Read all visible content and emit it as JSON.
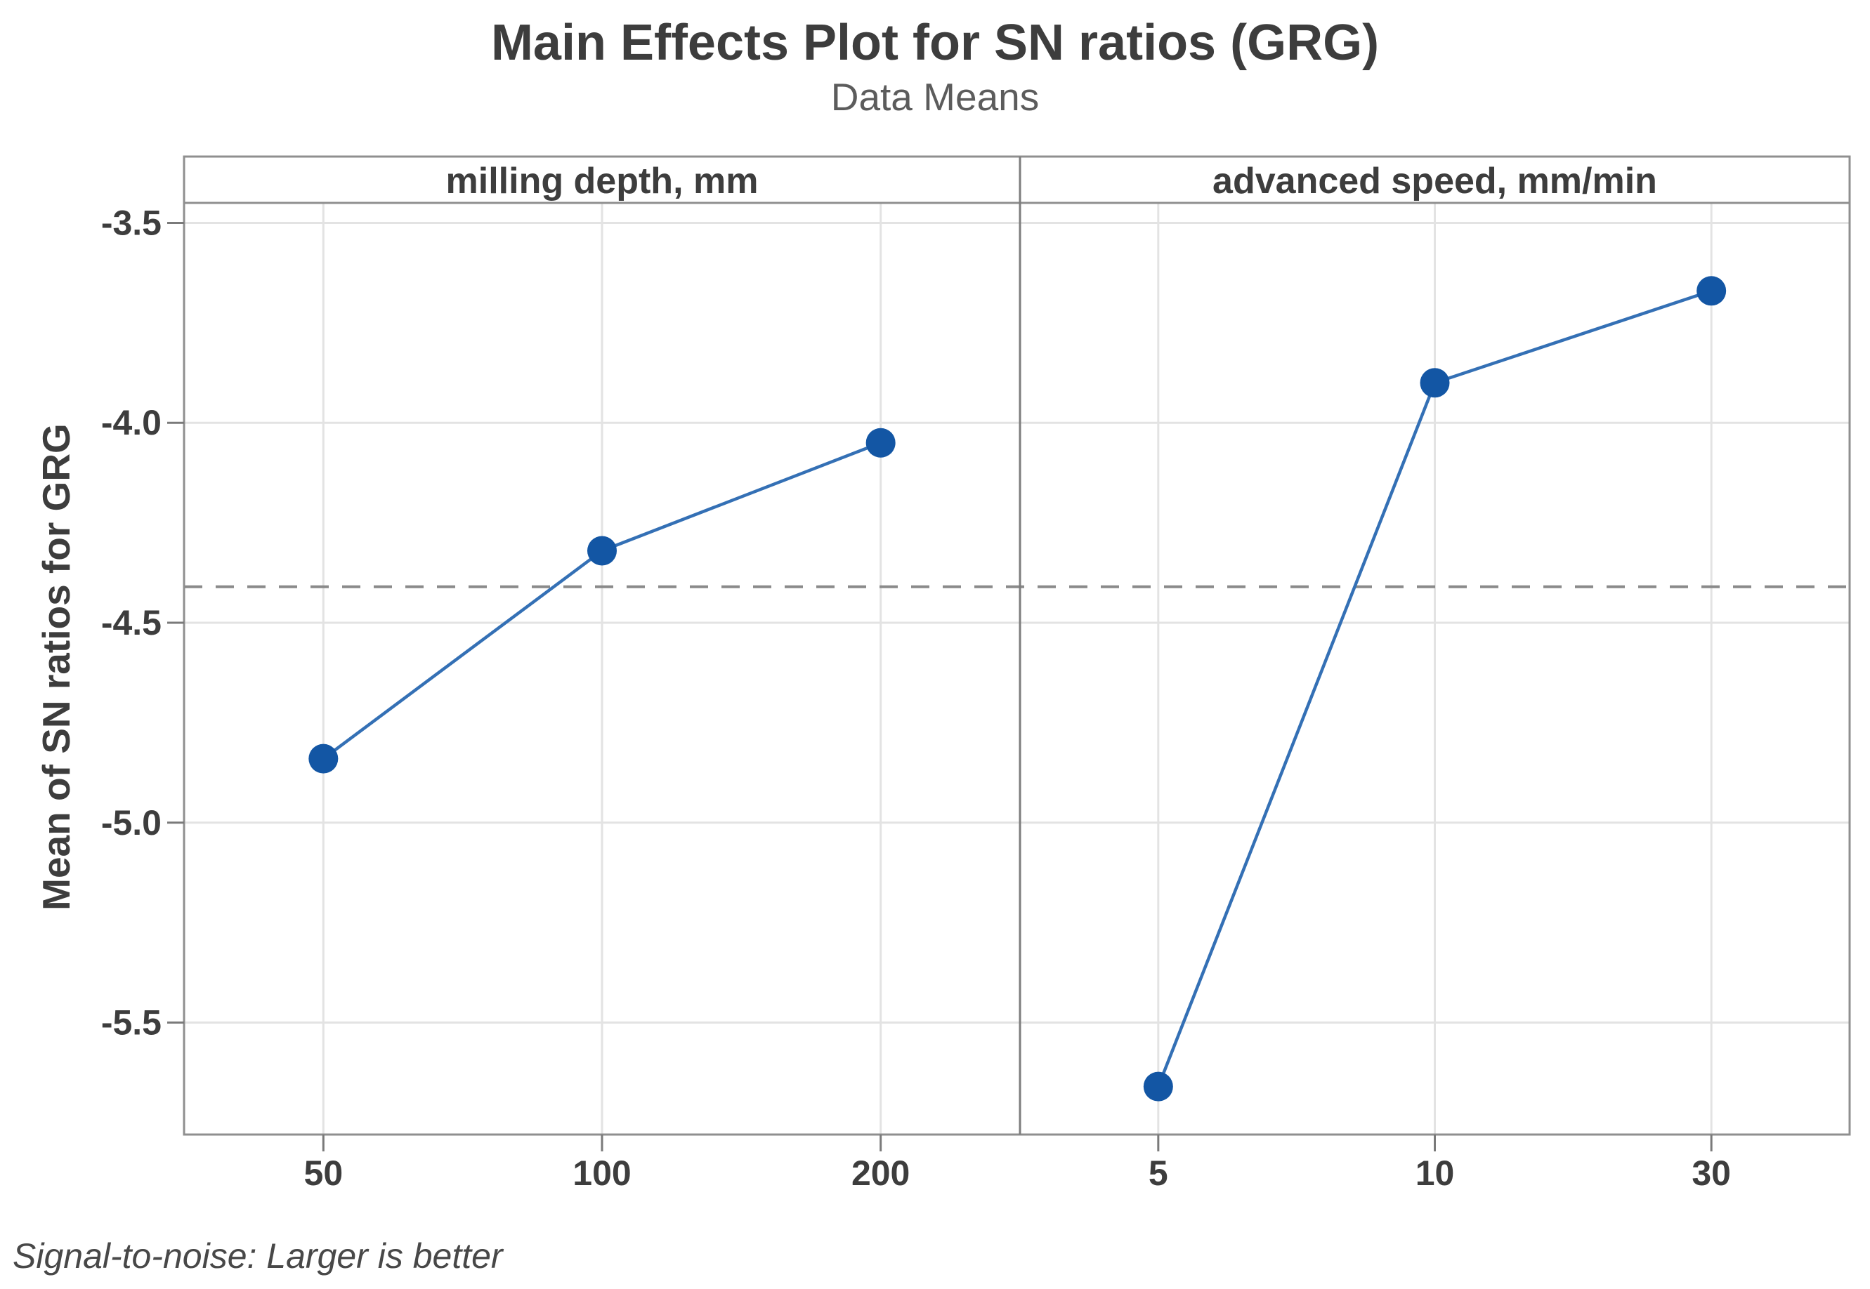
{
  "page": {
    "title": "Main Effects Plot for SN ratios (GRG)",
    "subtitle": "Data Means",
    "y_axis_title": "Mean of SN ratios for GRG",
    "footnote": "Signal-to-noise: Larger is better"
  },
  "chart_data": {
    "type": "line",
    "title": "Main Effects Plot for SN ratios (GRG)",
    "subtitle": "Data Means",
    "ylabel": "Mean of SN ratios for GRG",
    "footnote": "Signal-to-noise: Larger is better",
    "grid": true,
    "legend": "none",
    "ylim": [
      -5.78,
      -3.45
    ],
    "yticks": [
      -3.5,
      -4.0,
      -4.5,
      -5.0,
      -5.5
    ],
    "reference_line": {
      "value": -4.41,
      "style": "dashed"
    },
    "panels": [
      {
        "title": "milling depth, mm",
        "categories": [
          "50",
          "100",
          "200"
        ],
        "values": [
          -4.84,
          -4.32,
          -4.05
        ]
      },
      {
        "title": "advanced speed, mm/min",
        "categories": [
          "5",
          "10",
          "30"
        ],
        "values": [
          -5.66,
          -3.9,
          -3.67
        ]
      }
    ]
  },
  "colors": {
    "marker": "#1356A4",
    "line": "#3470B5",
    "grid": "#e3e3e3",
    "frame": "#8f8f8f",
    "divider": "#7d7d7d",
    "tick": "#7a7a7a",
    "reference": "#8a8a8a",
    "tick_label": "#3d3d3d",
    "panel_title": "#3d3d3d"
  }
}
